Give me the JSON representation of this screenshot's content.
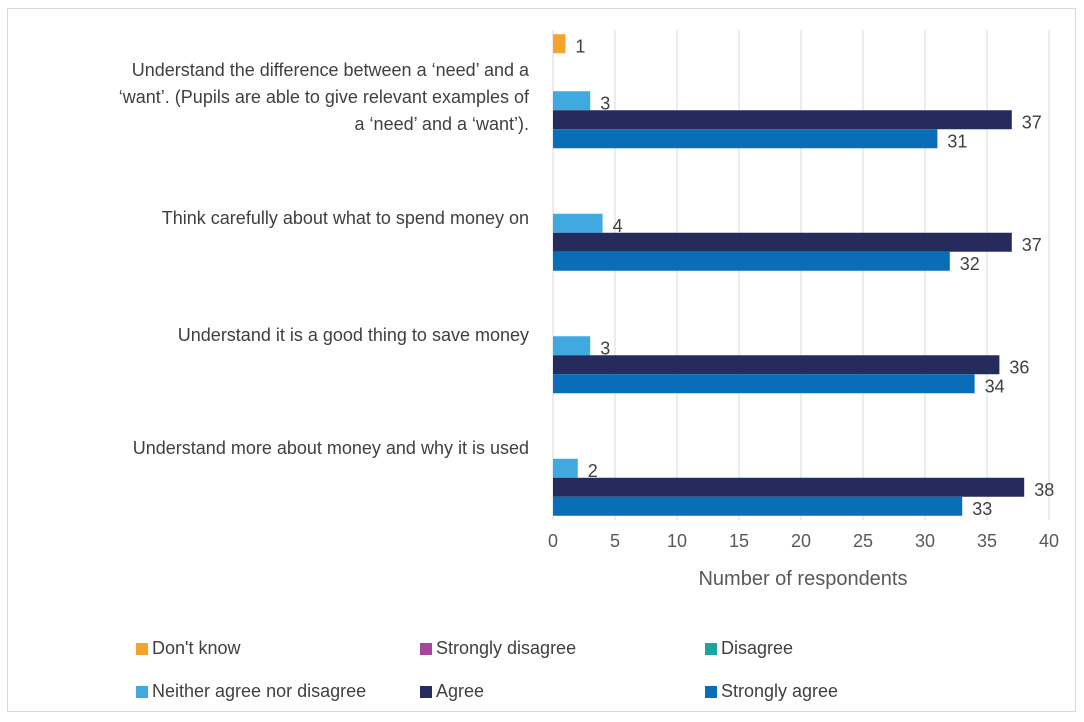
{
  "chart_data": {
    "type": "bar",
    "orientation": "horizontal",
    "xlabel": "Number of respondents",
    "xlim": [
      0,
      40
    ],
    "xticks": [
      0,
      5,
      10,
      15,
      20,
      25,
      30,
      35,
      40
    ],
    "grid": true,
    "legend_position": "bottom",
    "categories": [
      "Understand the difference between a ‘need’ and a ‘want’. (Pupils are able to give relevant examples of a ‘need’ and a ‘want’).",
      "Think carefully about what to spend money on",
      "Understand it is a good thing to save money",
      "Understand more about money and why it is used"
    ],
    "category_lines": [
      [
        "Understand the difference between a ‘need’ and a",
        "‘want’. (Pupils are able to give relevant examples of",
        "a ‘need’ and a ‘want’)."
      ],
      [
        "Think carefully about what to spend money on"
      ],
      [
        "Understand it is a good thing to save money"
      ],
      [
        "Understand more about money and why it is used"
      ]
    ],
    "series": [
      {
        "name": "Don't know",
        "color": "#f5a42b",
        "values": [
          1,
          0,
          0,
          0
        ]
      },
      {
        "name": "Strongly disagree",
        "color": "#a4489a",
        "values": [
          0,
          0,
          0,
          0
        ]
      },
      {
        "name": "Disagree",
        "color": "#1aa69f",
        "values": [
          0,
          0,
          0,
          0
        ]
      },
      {
        "name": "Neither agree nor disagree",
        "color": "#3fa9e0",
        "values": [
          3,
          4,
          3,
          2
        ]
      },
      {
        "name": "Agree",
        "color": "#262b5e",
        "values": [
          37,
          37,
          36,
          38
        ]
      },
      {
        "name": "Strongly agree",
        "color": "#0a6db8",
        "values": [
          31,
          32,
          34,
          33
        ]
      }
    ]
  }
}
